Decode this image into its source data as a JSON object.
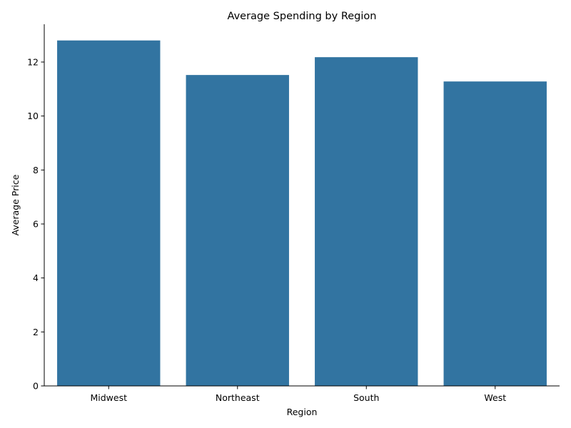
{
  "chart_data": {
    "type": "bar",
    "title": "Average Spending by Region",
    "xlabel": "Region",
    "ylabel": "Average Price",
    "categories": [
      "Midwest",
      "Northeast",
      "South",
      "West"
    ],
    "values": [
      12.8,
      11.52,
      12.18,
      11.28
    ],
    "ylim": [
      0,
      13.4
    ],
    "yticks": [
      0,
      2,
      4,
      6,
      8,
      10,
      12
    ],
    "grid": false,
    "bar_color": "#3274a1"
  }
}
